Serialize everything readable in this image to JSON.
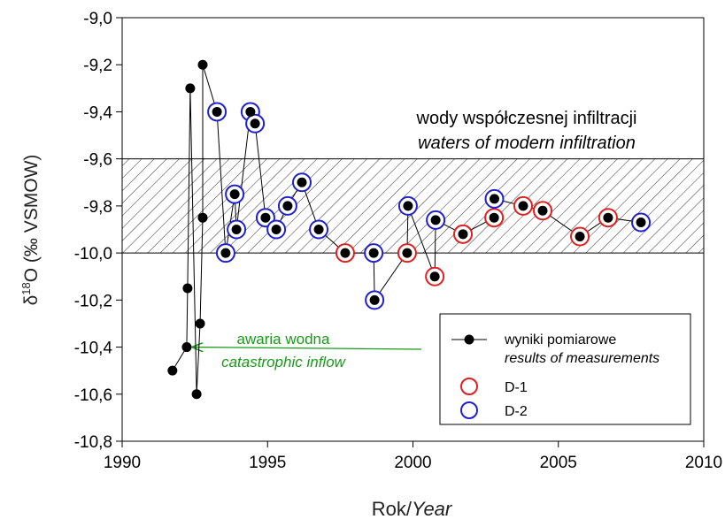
{
  "chart_data": {
    "type": "scatter",
    "title_lines": [
      "wody współczesnej infiltracji",
      "waters of modern infiltration"
    ],
    "band": [
      -10.0,
      -9.6
    ],
    "y_label": {
      "prefix": "δ",
      "superscript": "18",
      "suffix": "O (‰ VSMOW)"
    },
    "x_label": {
      "plain": "Rok/",
      "italic": "Year"
    },
    "xlim": [
      1990,
      2010
    ],
    "xticks": [
      1990,
      1995,
      2000,
      2005,
      2010
    ],
    "ylim": [
      -10.8,
      -9.0
    ],
    "yticks": [
      {
        "value": -10.8,
        "label": "-10,8"
      },
      {
        "value": -10.6,
        "label": "-10,6"
      },
      {
        "value": -10.4,
        "label": "-10,4"
      },
      {
        "value": -10.2,
        "label": "-10,2"
      },
      {
        "value": -10.0,
        "label": "-10,0"
      },
      {
        "value": -9.8,
        "label": "-9,8"
      },
      {
        "value": -9.6,
        "label": "-9,6"
      },
      {
        "value": -9.4,
        "label": "-9,4"
      },
      {
        "value": -9.2,
        "label": "-9,2"
      },
      {
        "value": -9.0,
        "label": "-9,0"
      }
    ],
    "annotation": {
      "lines": [
        "awaria wodna",
        "catastrophic inflow"
      ],
      "color": "#1a9a1a"
    },
    "series": [
      {
        "name": "wyniki pomiarowe",
        "name_translation": "results of measurements",
        "color": "#000000",
        "x": [
          1991.73,
          1992.22,
          1992.25,
          1992.34,
          1992.56,
          1992.68,
          1992.77,
          1992.77,
          1993.26,
          1993.56,
          1993.87,
          1993.93,
          1994.41,
          1994.57,
          1994.93,
          1995.3,
          1995.69,
          1996.18,
          1996.76,
          1997.67,
          1998.65,
          1998.68,
          1999.8,
          1999.83,
          2000.75,
          2000.78,
          2001.72,
          2002.79,
          2002.8,
          2003.79,
          2004.46,
          2005.74,
          2006.71,
          2007.84
        ],
        "values": [
          -10.5,
          -10.4,
          -10.15,
          -9.3,
          -10.6,
          -10.3,
          -9.85,
          -9.2,
          -9.4,
          -10.0,
          -9.75,
          -9.9,
          -9.4,
          -9.45,
          -9.85,
          -9.9,
          -9.8,
          -9.7,
          -9.9,
          -10.0,
          -10.0,
          -10.2,
          -10.0,
          -9.8,
          -10.1,
          -9.86,
          -9.92,
          -9.85,
          -9.77,
          -9.8,
          -9.82,
          -9.93,
          -9.85,
          -9.87
        ]
      },
      {
        "name": "D-1",
        "color": "#e02020",
        "x": [
          1997.67,
          1999.8,
          2000.75,
          2001.72,
          2002.79,
          2003.79,
          2004.46,
          2005.74,
          2006.71
        ],
        "values": [
          -10.0,
          -10.0,
          -10.1,
          -9.92,
          -9.85,
          -9.8,
          -9.82,
          -9.93,
          -9.85
        ]
      },
      {
        "name": "D-2",
        "color": "#2020d0",
        "x": [
          1993.26,
          1993.56,
          1993.87,
          1993.93,
          1994.41,
          1994.57,
          1994.93,
          1995.3,
          1995.69,
          1996.18,
          1996.76,
          1998.65,
          1998.68,
          1999.83,
          2000.78,
          2002.8,
          2007.84
        ],
        "values": [
          -9.4,
          -10.0,
          -9.75,
          -9.9,
          -9.4,
          -9.45,
          -9.85,
          -9.9,
          -9.8,
          -9.7,
          -9.9,
          -10.0,
          -10.2,
          -9.8,
          -9.86,
          -9.77,
          -9.87
        ]
      }
    ]
  }
}
